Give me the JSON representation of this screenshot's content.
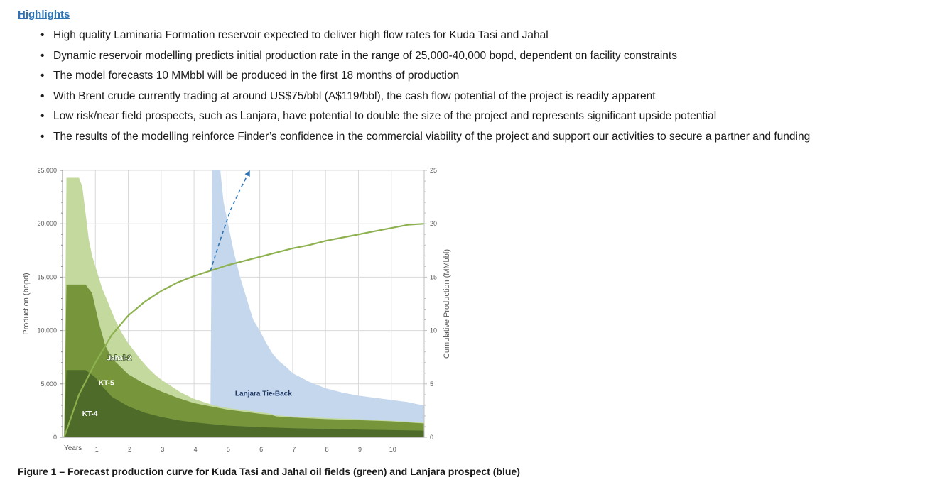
{
  "highlights": {
    "title": "Highlights",
    "items": [
      "High quality Laminaria Formation reservoir expected to deliver high flow rates for Kuda Tasi and Jahal",
      "Dynamic reservoir modelling predicts initial production rate in the range of 25,000-40,000 bopd, dependent on facility constraints",
      "The model forecasts 10 MMbbl will be produced in the first 18 months of production",
      "With Brent crude currently trading at around US$75/bbl (A$119/bbl), the cash flow potential of the project is readily apparent",
      "Low risk/near field prospects, such as Lanjara, have potential to double the size of the project and represents significant upside potential",
      "The results of the modelling reinforce Finder’s confidence in the commercial viability of the project and support our activities to secure a partner and funding"
    ]
  },
  "caption": "Figure 1 – Forecast production curve for Kuda Tasi and Jahal oil fields (green) and Lanjara prospect (blue)",
  "chart_data": {
    "type": "area",
    "xlabel": "Years",
    "ylabel": "Production (bopd)",
    "y2label": "Cumulative Production (MMbbl)",
    "xlim": [
      0,
      11
    ],
    "ylim": [
      0,
      25000
    ],
    "y2lim": [
      0,
      25
    ],
    "x_ticks": [
      "1",
      "2",
      "3",
      "4",
      "5",
      "6",
      "7",
      "8",
      "9",
      "10"
    ],
    "y_ticks": [
      "0",
      "5,000",
      "10,000",
      "15,000",
      "20,000",
      "25,000"
    ],
    "y2_ticks": [
      "0",
      "5",
      "10",
      "15",
      "20",
      "25"
    ],
    "grid": true,
    "colors": {
      "kt4": "#4e6b2a",
      "kt5": "#77953b",
      "jahal2": "#c3d99e",
      "lanjara": "#c5d7ec",
      "cumulative": "#8db14e",
      "upside_arrow": "#2e74b5"
    },
    "labels": {
      "kt4": "KT-4",
      "kt5": "KT-5",
      "jahal2": "Jahal-2",
      "lanjara": "Lanjara Tie-Back"
    },
    "series": [
      {
        "name": "KT-4",
        "x": [
          0.05,
          0.12,
          0.2,
          0.7,
          1.0,
          1.2,
          1.5,
          2.0,
          2.5,
          3.0,
          3.5,
          4.0,
          4.5,
          5.0,
          6.0,
          6.5,
          7.0,
          8.0,
          9.0,
          10.0,
          11.0
        ],
        "values": [
          0,
          6300,
          6300,
          6300,
          5600,
          4800,
          3800,
          2900,
          2300,
          1900,
          1600,
          1400,
          1250,
          1100,
          950,
          900,
          850,
          780,
          720,
          670,
          620
        ]
      },
      {
        "name": "KT-5",
        "x": [
          0.05,
          0.12,
          0.2,
          0.7,
          0.9,
          1.1,
          1.3,
          1.5,
          2.0,
          2.5,
          3.0,
          3.5,
          4.0,
          4.5,
          5.0,
          6.0,
          6.35,
          6.5,
          7.0,
          8.0,
          9.0,
          10.0,
          11.0
        ],
        "values": [
          0,
          14300,
          14300,
          14300,
          13500,
          10800,
          8600,
          7400,
          5900,
          5000,
          4300,
          3700,
          3200,
          2900,
          2600,
          2200,
          2100,
          1950,
          1850,
          1700,
          1600,
          1500,
          1300
        ]
      },
      {
        "name": "Jahal-2",
        "x": [
          0.05,
          0.12,
          0.2,
          0.5,
          0.6,
          0.7,
          0.8,
          0.9,
          1.0,
          1.1,
          1.2,
          1.4,
          1.6,
          1.8,
          2.0,
          2.2,
          2.4,
          2.6,
          2.8,
          3.0,
          3.2,
          3.4,
          3.6,
          3.8,
          4.0,
          4.2,
          4.4,
          4.6,
          5.0,
          6.0,
          6.35,
          6.5,
          7.0,
          8.0,
          9.0,
          10.0,
          11.0
        ],
        "values": [
          0,
          24300,
          24300,
          24300,
          23500,
          21000,
          18500,
          17000,
          16000,
          15000,
          14000,
          12500,
          11000,
          9800,
          8800,
          8000,
          7200,
          6500,
          5900,
          5400,
          5000,
          4600,
          4200,
          3900,
          3600,
          3400,
          3200,
          3000,
          2750,
          2350,
          2200,
          2050,
          1950,
          1800,
          1700,
          1550,
          1400
        ]
      },
      {
        "name": "Lanjara Tie-Back",
        "x": [
          4.5,
          4.55,
          4.6,
          4.7,
          4.8,
          4.9,
          5.0,
          5.2,
          5.4,
          5.6,
          5.8,
          6.0,
          6.2,
          6.4,
          6.6,
          6.8,
          7.0,
          7.5,
          8.0,
          8.5,
          9.0,
          9.5,
          10.0,
          10.5,
          10.8,
          11.0
        ],
        "values": [
          2900,
          25000,
          25000,
          25000,
          25000,
          22000,
          20500,
          17500,
          15000,
          13000,
          11000,
          10000,
          8800,
          7800,
          7100,
          6600,
          6000,
          5200,
          4600,
          4200,
          3900,
          3700,
          3500,
          3300,
          3100,
          3000
        ]
      },
      {
        "name": "Cumulative",
        "axis": "y2",
        "x": [
          0.05,
          0.5,
          1.0,
          1.5,
          2.0,
          2.5,
          3.0,
          3.5,
          4.0,
          4.5,
          5.0,
          5.5,
          6.0,
          6.5,
          7.0,
          7.5,
          8.0,
          8.5,
          9.0,
          9.5,
          10.0,
          10.5,
          11.0
        ],
        "values": [
          0,
          4.0,
          7.0,
          9.6,
          11.4,
          12.7,
          13.7,
          14.5,
          15.1,
          15.6,
          16.1,
          16.5,
          16.9,
          17.3,
          17.7,
          18.0,
          18.4,
          18.7,
          19.0,
          19.3,
          19.6,
          19.9,
          20.0
        ]
      },
      {
        "name": "Upside",
        "axis": "y2",
        "x": [
          4.5,
          4.8,
          5.1,
          5.4,
          5.7
        ],
        "values": [
          15.6,
          18.5,
          21.2,
          23.2,
          25.0
        ]
      }
    ]
  }
}
